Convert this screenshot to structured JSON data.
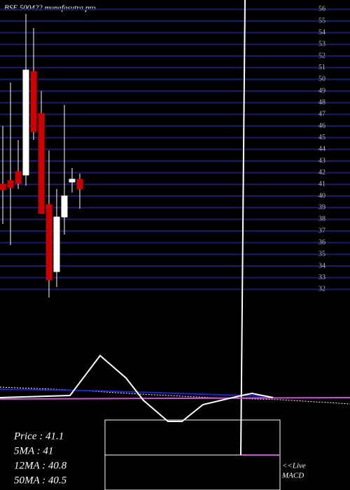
{
  "chart_data": {
    "type": "candlestick",
    "title": "BSE 500422 munafasutra.pro",
    "categories": [
      null,
      null,
      null,
      null,
      null,
      null,
      null,
      null,
      null,
      null,
      null
    ],
    "series": [
      {
        "name": null,
        "up_color": "#ffffff",
        "down_color": "#cc0000",
        "open": [
          41.02,
          41.32,
          42.1,
          41.8,
          50.68,
          47.08,
          39.28,
          33.52,
          38.2,
          41.2,
          41.44
        ],
        "high": [
          46.0,
          49.72,
          44.8,
          55.6,
          54.4,
          49.0,
          43.9,
          40.6,
          47.8,
          42.4,
          41.92
        ],
        "low": [
          37.6,
          35.8,
          40.6,
          40.9,
          44.8,
          38.5,
          31.3,
          32.2,
          36.7,
          40.3,
          38.92
        ],
        "close": [
          40.54,
          40.72,
          41.08,
          50.8,
          45.52,
          38.5,
          32.8,
          38.2,
          40.0,
          41.44,
          40.6
        ]
      }
    ],
    "ylim": [
      31.3,
      56.5
    ],
    "yticks": [
      32,
      33,
      34,
      35,
      36,
      37,
      38,
      39,
      40,
      41,
      42,
      43,
      44,
      45,
      46,
      47,
      48,
      49,
      50,
      51,
      52,
      53,
      54,
      55,
      56
    ],
    "grid": true,
    "grid_color": "#1c1c6e",
    "indicators": [
      "Price   : 41.1",
      "5MA : 41",
      "12MA : 40.8",
      "50MA : 40.5"
    ],
    "macd_label": [
      "<<Live",
      "MACD"
    ]
  }
}
